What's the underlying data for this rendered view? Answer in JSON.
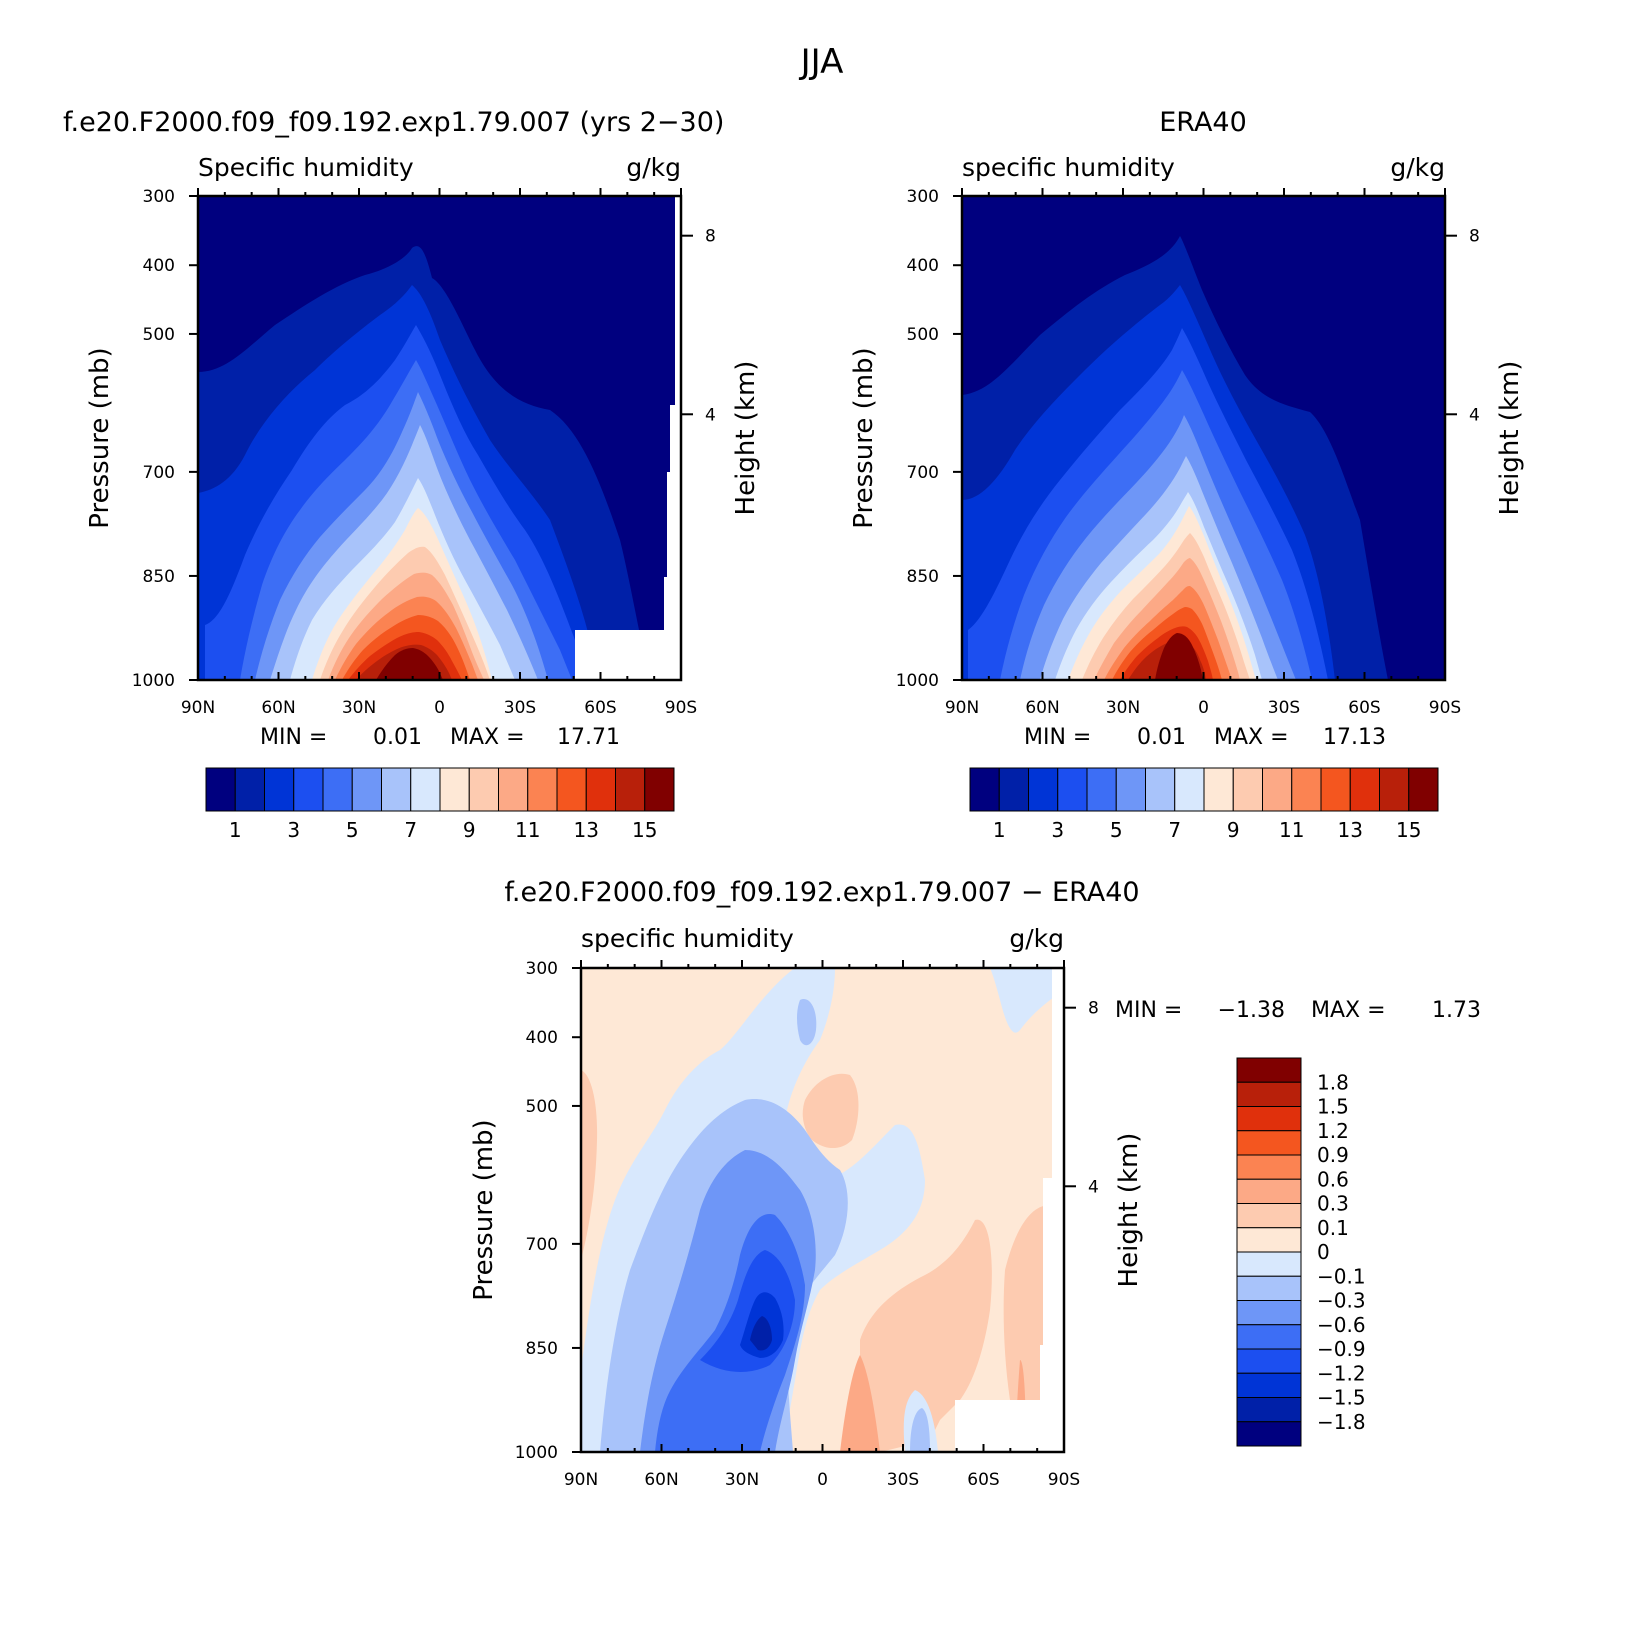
{
  "main_title": "JJA",
  "lat_ticks": [
    "90N",
    "60N",
    "30N",
    "0",
    "30S",
    "60S",
    "90S"
  ],
  "pressure_ticks": [
    "300",
    "400",
    "500",
    "700",
    "850",
    "1000"
  ],
  "height_ticks": [
    "8",
    "4"
  ],
  "y_label": "Pressure (mb)",
  "y2_label": "Height (km)",
  "colors": {
    "abs_levels": [
      "#00007f",
      "#0020a8",
      "#0034d6",
      "#1c4ff0",
      "#3d6ef5",
      "#6e96f7",
      "#a8c3fa",
      "#d8e8fd",
      "#fee8d6",
      "#fdcbb0",
      "#fca986",
      "#fb8352",
      "#f4561f",
      "#e0300c",
      "#b8200a",
      "#800000"
    ],
    "diff_levels": [
      "#00007f",
      "#0020a8",
      "#0034d6",
      "#1c4ff0",
      "#3d6ef5",
      "#6e96f7",
      "#a8c3fa",
      "#d8e8fd",
      "#fee8d6",
      "#fdcbb0",
      "#fca986",
      "#fb8352",
      "#f4561f",
      "#e0300c",
      "#b8200a",
      "#800000"
    ]
  },
  "chart_data": [
    {
      "type": "contour",
      "case_title": "f.e20.F2000.f09_f09.192.exp1.79.007 (yrs 2−30)",
      "field_label": "Specific humidity",
      "units": "g/kg",
      "xlim": [
        90,
        -90
      ],
      "ylim": [
        1000,
        300
      ],
      "min_label": "MIN =",
      "min_value": "0.01",
      "max_label": "MAX =",
      "max_value": "17.71",
      "colorbar_labels": [
        "1",
        "3",
        "5",
        "7",
        "9",
        "11",
        "13",
        "15"
      ],
      "peak": {
        "lat": 10,
        "value": 17.71
      }
    },
    {
      "type": "contour",
      "case_title": "ERA40",
      "field_label": "specific humidity",
      "units": "g/kg",
      "xlim": [
        90,
        -90
      ],
      "ylim": [
        1000,
        300
      ],
      "min_label": "MIN =",
      "min_value": "0.01",
      "max_label": "MAX =",
      "max_value": "17.13",
      "colorbar_labels": [
        "1",
        "3",
        "5",
        "7",
        "9",
        "11",
        "13",
        "15"
      ],
      "peak": {
        "lat": 10,
        "value": 17.13
      }
    },
    {
      "type": "contour",
      "case_title": "f.e20.F2000.f09_f09.192.exp1.79.007 − ERA40",
      "field_label": "specific humidity",
      "units": "g/kg",
      "xlim": [
        90,
        -90
      ],
      "ylim": [
        1000,
        300
      ],
      "min_label": "MIN =",
      "min_value": "−1.38",
      "max_label": "MAX =",
      "max_value": "1.73",
      "colorbar_labels": [
        "1.8",
        "1.5",
        "1.2",
        "0.9",
        "0.6",
        "0.3",
        "0.1",
        "0",
        "−0.1",
        "−0.3",
        "−0.6",
        "−0.9",
        "−1.2",
        "−1.5",
        "−1.8"
      ]
    }
  ]
}
